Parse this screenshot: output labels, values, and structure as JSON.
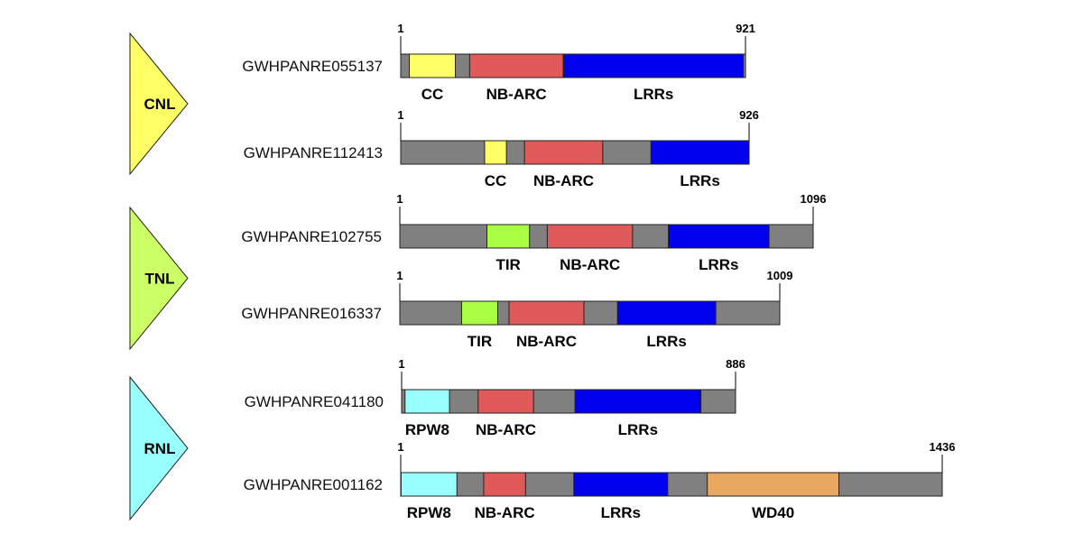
{
  "classes": [
    {
      "name": "CNL",
      "color": "#ffff66"
    },
    {
      "name": "TNL",
      "color": "#ccff66"
    },
    {
      "name": "RNL",
      "color": "#99ffff"
    }
  ],
  "domain_colors": {
    "CC": "#ffff66",
    "TIR": "#aaff44",
    "RPW8": "#99ffff",
    "NB-ARC": "#e05a5a",
    "LRRs": "#0000ee",
    "WD40": "#e8a860",
    "backbone": "#808080"
  },
  "proteins": [
    {
      "id": "GWHPANRE055137",
      "class": "CNL",
      "start_label": "1",
      "length": 921,
      "length_label": "921",
      "domains": [
        {
          "name": "CC",
          "start": 23,
          "end": 146
        },
        {
          "name": "NB-ARC",
          "start": 184,
          "end": 434
        },
        {
          "name": "LRRs",
          "start": 436,
          "end": 915
        }
      ]
    },
    {
      "id": "GWHPANRE112413",
      "class": "CNL",
      "start_label": "1",
      "length": 926,
      "length_label": "926",
      "domains": [
        {
          "name": "CC",
          "start": 223,
          "end": 281
        },
        {
          "name": "NB-ARC",
          "start": 329,
          "end": 537
        },
        {
          "name": "LRRs",
          "start": 665,
          "end": 926
        }
      ]
    },
    {
      "id": "GWHPANRE102755",
      "class": "TNL",
      "start_label": "1",
      "length": 1096,
      "length_label": "1096",
      "domains": [
        {
          "name": "TIR",
          "start": 231,
          "end": 344
        },
        {
          "name": "NB-ARC",
          "start": 391,
          "end": 617
        },
        {
          "name": "LRRs",
          "start": 712,
          "end": 979
        }
      ]
    },
    {
      "id": "GWHPANRE016337",
      "class": "TNL",
      "start_label": "1",
      "length": 1009,
      "length_label": "1009",
      "domains": [
        {
          "name": "TIR",
          "start": 164,
          "end": 260
        },
        {
          "name": "NB-ARC",
          "start": 290,
          "end": 489
        },
        {
          "name": "LRRs",
          "start": 578,
          "end": 839
        }
      ]
    },
    {
      "id": "GWHPANRE041180",
      "class": "RNL",
      "start_label": "1",
      "length": 886,
      "length_label": "886",
      "domains": [
        {
          "name": "RPW8",
          "start": 9,
          "end": 127
        },
        {
          "name": "NB-ARC",
          "start": 203,
          "end": 350
        },
        {
          "name": "LRRs",
          "start": 460,
          "end": 794
        }
      ]
    },
    {
      "id": "GWHPANRE001162",
      "class": "RNL",
      "start_label": "1",
      "length": 1436,
      "length_label": "1436",
      "domains": [
        {
          "name": "RPW8",
          "start": 1,
          "end": 149
        },
        {
          "name": "NB-ARC",
          "start": 220,
          "end": 331
        },
        {
          "name": "LRRs",
          "start": 459,
          "end": 708
        },
        {
          "name": "WD40",
          "start": 813,
          "end": 1162
        }
      ]
    }
  ]
}
